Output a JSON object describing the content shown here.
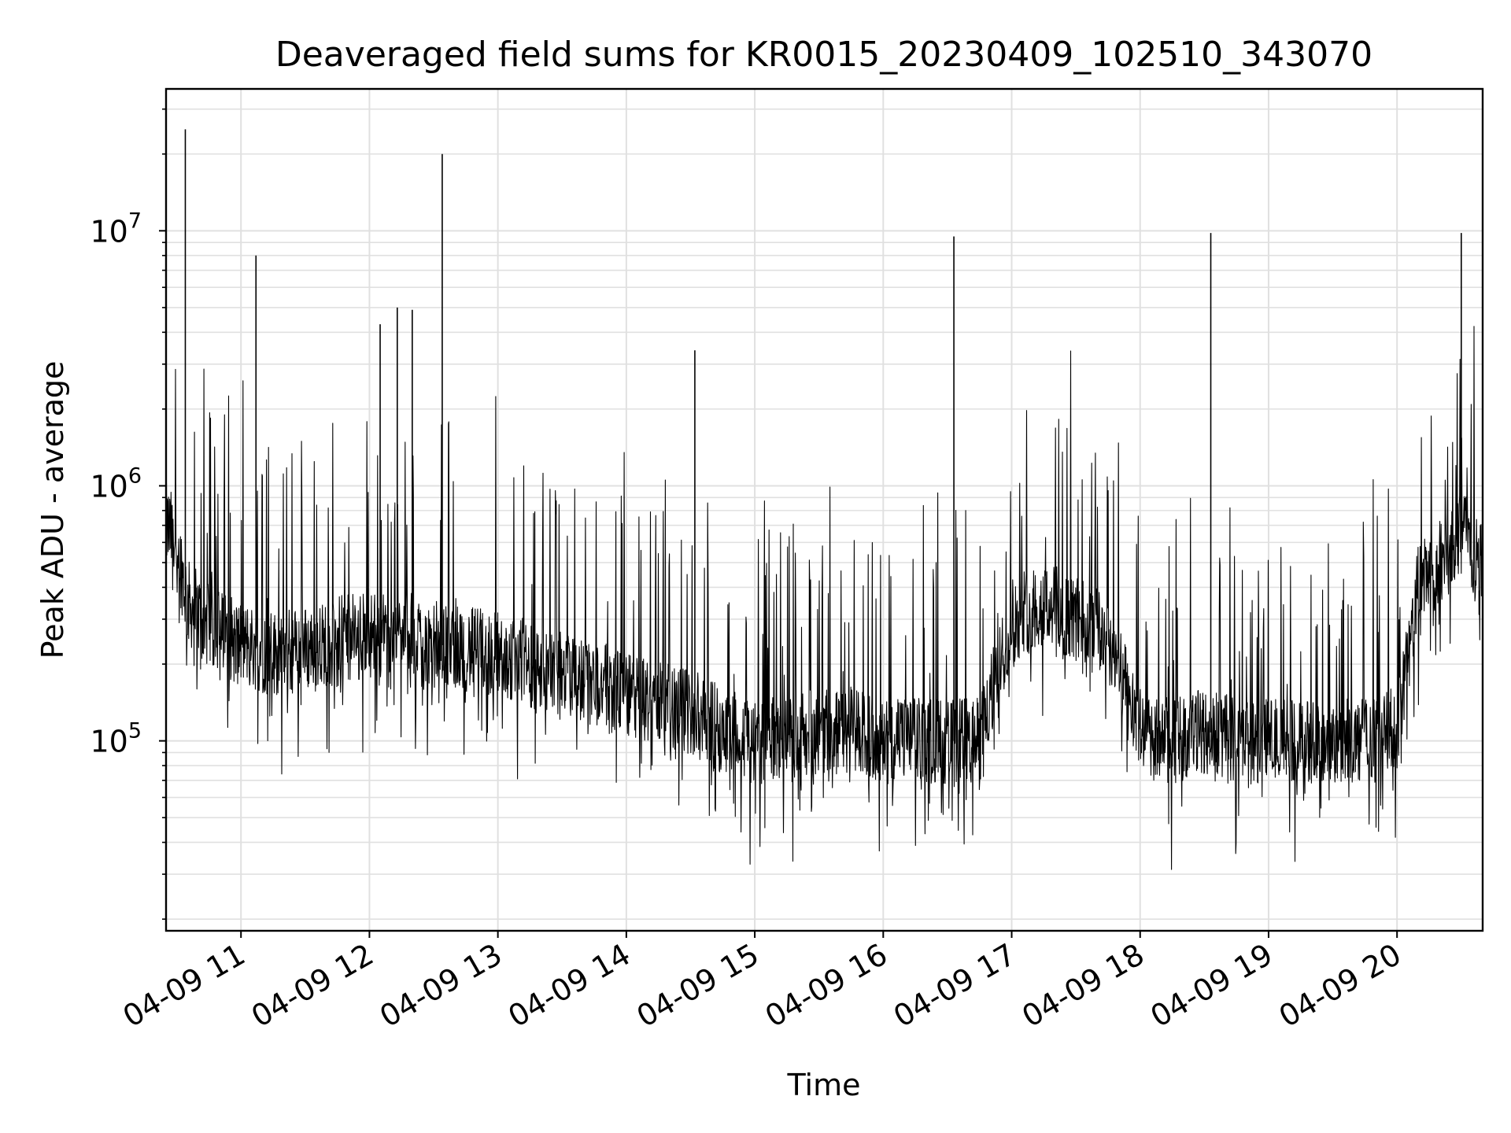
{
  "chart_data": {
    "type": "line",
    "title": "Deaveraged field sums for KR0015_20230409_102510_343070",
    "xlabel": "Time",
    "ylabel": "Peak ADU - average",
    "yscale": "log",
    "ylim": [
      18000,
      36000000
    ],
    "xlim": [
      "2023-04-09 10:25",
      "2023-04-09 20:40"
    ],
    "grid": true,
    "line_color": "#000000",
    "x_ticks": [
      "04-09 11",
      "04-09 12",
      "04-09 13",
      "04-09 14",
      "04-09 15",
      "04-09 16",
      "04-09 17",
      "04-09 18",
      "04-09 19",
      "04-09 20"
    ],
    "y_ticks": [
      {
        "base": "10",
        "exp": "5",
        "value": 100000
      },
      {
        "base": "10",
        "exp": "6",
        "value": 1000000
      },
      {
        "base": "10",
        "exp": "7",
        "value": 10000000
      }
    ],
    "series": [
      {
        "x": [
          "2023-04-09 10:25",
          "2023-04-09 10:30",
          "2023-04-09 10:35",
          "2023-04-09 10:45",
          "2023-04-09 11:00",
          "2023-04-09 11:15",
          "2023-04-09 11:30",
          "2023-04-09 11:45",
          "2023-04-09 12:00",
          "2023-04-09 12:15",
          "2023-04-09 12:30",
          "2023-04-09 12:45",
          "2023-04-09 13:00",
          "2023-04-09 13:15",
          "2023-04-09 13:30",
          "2023-04-09 13:45",
          "2023-04-09 14:00",
          "2023-04-09 14:15",
          "2023-04-09 14:30",
          "2023-04-09 14:45",
          "2023-04-09 15:00",
          "2023-04-09 15:15",
          "2023-04-09 15:30",
          "2023-04-09 15:45",
          "2023-04-09 16:00",
          "2023-04-09 16:15",
          "2023-04-09 16:30",
          "2023-04-09 16:45",
          "2023-04-09 17:00",
          "2023-04-09 17:15",
          "2023-04-09 17:30",
          "2023-04-09 17:45",
          "2023-04-09 18:00",
          "2023-04-09 18:15",
          "2023-04-09 18:30",
          "2023-04-09 18:45",
          "2023-04-09 19:00",
          "2023-04-09 19:15",
          "2023-04-09 19:30",
          "2023-04-09 19:45",
          "2023-04-09 20:00",
          "2023-04-09 20:10",
          "2023-04-09 20:20",
          "2023-04-09 20:30",
          "2023-04-09 20:40"
        ],
        "y": [
          700000,
          600000,
          350000,
          280000,
          240000,
          220000,
          230000,
          250000,
          260000,
          270000,
          240000,
          230000,
          220000,
          200000,
          180000,
          170000,
          150000,
          140000,
          130000,
          110000,
          100000,
          100000,
          110000,
          110000,
          100000,
          100000,
          100000,
          100000,
          300000,
          350000,
          300000,
          250000,
          110000,
          100000,
          110000,
          100000,
          100000,
          100000,
          100000,
          100000,
          110000,
          400000,
          500000,
          650000,
          500000
        ]
      }
    ],
    "spikes": [
      {
        "x": "2023-04-09 10:34",
        "y": 25000000
      },
      {
        "x": "2023-04-09 11:07",
        "y": 8000000
      },
      {
        "x": "2023-04-09 12:05",
        "y": 4300000
      },
      {
        "x": "2023-04-09 12:13",
        "y": 5000000
      },
      {
        "x": "2023-04-09 12:20",
        "y": 4900000
      },
      {
        "x": "2023-04-09 12:34",
        "y": 20000000
      },
      {
        "x": "2023-04-09 14:32",
        "y": 3400000
      },
      {
        "x": "2023-04-09 16:33",
        "y": 9500000
      },
      {
        "x": "2023-04-09 18:33",
        "y": 9800000
      },
      {
        "x": "2023-04-09 20:30",
        "y": 9800000
      }
    ]
  }
}
